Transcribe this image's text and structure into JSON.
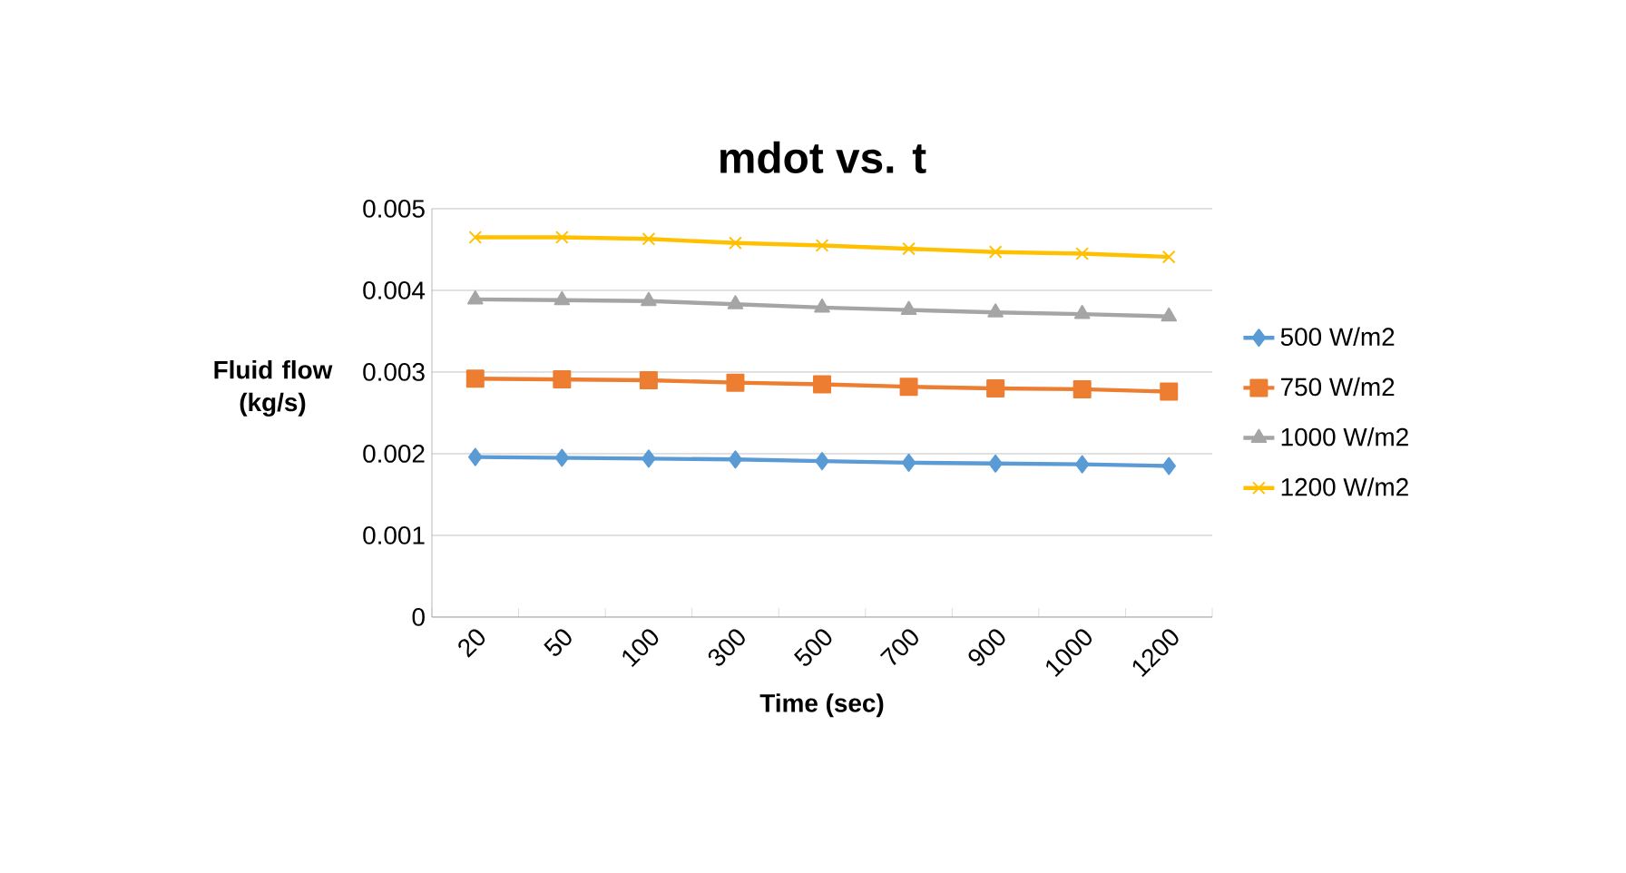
{
  "chart_data": {
    "type": "line",
    "title": "mdot vs. t",
    "xlabel": "Time (sec)",
    "ylabel": "Fluid flow (kg/s)",
    "categories": [
      "20",
      "50",
      "100",
      "300",
      "500",
      "700",
      "900",
      "1000",
      "1200"
    ],
    "series": [
      {
        "name": "500 W/m2",
        "color": "#5b9bd5",
        "marker": "diamond",
        "values": [
          0.00196,
          0.00195,
          0.00194,
          0.00193,
          0.00191,
          0.00189,
          0.00188,
          0.00187,
          0.00185
        ]
      },
      {
        "name": "750 W/m2",
        "color": "#ed7d31",
        "marker": "square",
        "values": [
          0.00292,
          0.00291,
          0.0029,
          0.00287,
          0.00285,
          0.00282,
          0.0028,
          0.00279,
          0.00276
        ]
      },
      {
        "name": "1000 W/m2",
        "color": "#a5a5a5",
        "marker": "triangle",
        "values": [
          0.00389,
          0.00388,
          0.00387,
          0.00383,
          0.00379,
          0.00376,
          0.00373,
          0.00371,
          0.00368
        ]
      },
      {
        "name": "1200 W/m2",
        "color": "#ffc000",
        "marker": "cross",
        "values": [
          0.00465,
          0.00465,
          0.00463,
          0.00458,
          0.00455,
          0.00451,
          0.00447,
          0.00445,
          0.00441
        ]
      }
    ],
    "ylim": [
      0,
      0.005
    ],
    "yticks": [
      0,
      0.001,
      0.002,
      0.003,
      0.004,
      0.005
    ],
    "grid": "y",
    "legend": "right"
  }
}
